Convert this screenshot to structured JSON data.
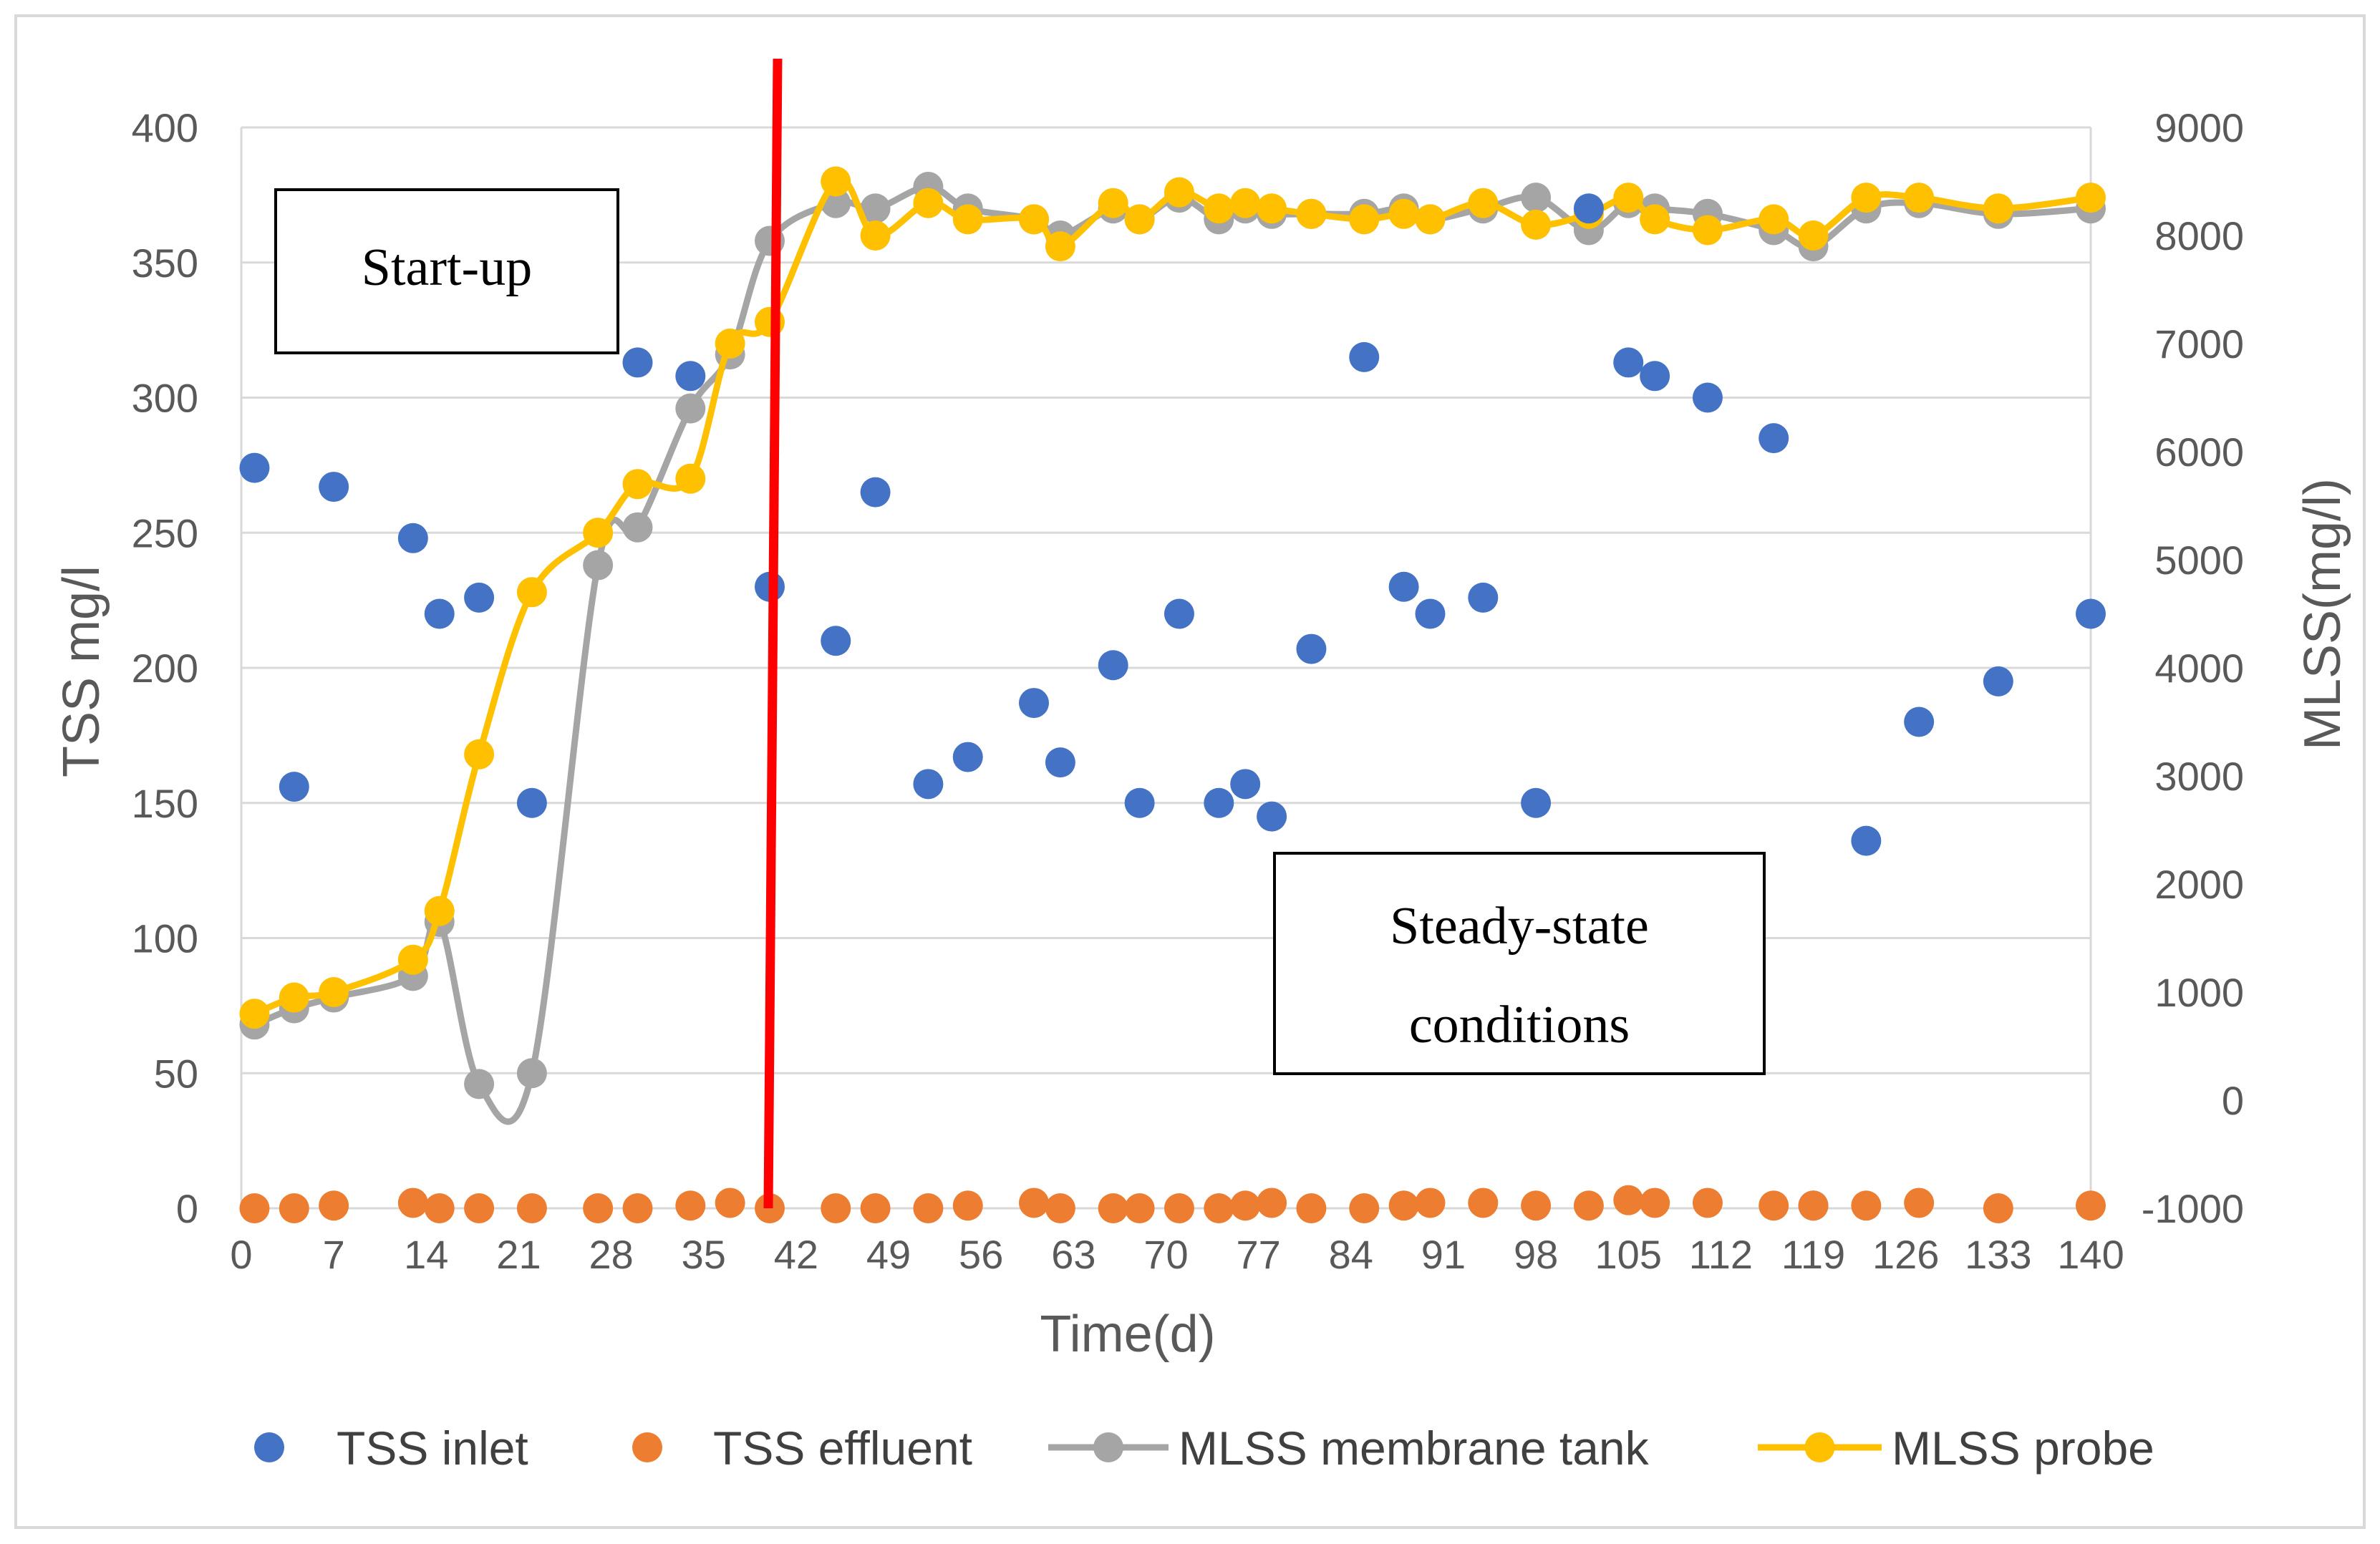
{
  "chart_data": {
    "type": "scatter+line",
    "xlabel": "Time(d)",
    "ylabel_left": "TSS mg/l",
    "ylabel_right": "MLSS(mg/l)",
    "xlim": [
      0,
      140
    ],
    "ylim_left": [
      0,
      400
    ],
    "ylim_right": [
      -1000,
      9000
    ],
    "x_ticks": [
      0,
      7,
      14,
      21,
      28,
      35,
      42,
      49,
      56,
      63,
      70,
      77,
      84,
      91,
      98,
      105,
      112,
      119,
      126,
      133,
      140
    ],
    "y_ticks_left": [
      0,
      50,
      100,
      150,
      200,
      250,
      300,
      350,
      400
    ],
    "y_ticks_right": [
      -1000,
      0,
      1000,
      2000,
      3000,
      4000,
      5000,
      6000,
      7000,
      8000,
      9000
    ],
    "grid": true,
    "legend_position": "bottom",
    "marker_line_day": 40,
    "annotations": [
      {
        "id": "start-up",
        "lines": [
          "Start-up"
        ]
      },
      {
        "id": "steady-state",
        "lines": [
          "Steady-state",
          "conditions"
        ]
      }
    ],
    "series": [
      {
        "name": "TSS inlet",
        "axis": "left",
        "style": "markers",
        "color": "#4472C4",
        "points": [
          [
            1,
            274
          ],
          [
            4,
            156
          ],
          [
            7,
            267
          ],
          [
            13,
            248
          ],
          [
            15,
            220
          ],
          [
            18,
            226
          ],
          [
            22,
            150
          ],
          [
            30,
            313
          ],
          [
            34,
            308
          ],
          [
            40,
            230
          ],
          [
            45,
            210
          ],
          [
            48,
            265
          ],
          [
            52,
            157
          ],
          [
            55,
            167
          ],
          [
            60,
            187
          ],
          [
            62,
            165
          ],
          [
            66,
            201
          ],
          [
            68,
            150
          ],
          [
            71,
            220
          ],
          [
            74,
            150
          ],
          [
            76,
            157
          ],
          [
            78,
            145
          ],
          [
            81,
            207
          ],
          [
            85,
            315
          ],
          [
            88,
            230
          ],
          [
            90,
            220
          ],
          [
            94,
            226
          ],
          [
            98,
            150
          ],
          [
            102,
            370
          ],
          [
            105,
            313
          ],
          [
            107,
            308
          ],
          [
            111,
            300
          ],
          [
            116,
            285
          ],
          [
            119,
            1
          ],
          [
            123,
            136
          ],
          [
            127,
            180
          ],
          [
            133,
            195
          ],
          [
            140,
            220
          ]
        ]
      },
      {
        "name": "TSS effluent",
        "axis": "left",
        "style": "markers",
        "color": "#ED7D31",
        "points": [
          [
            1,
            0
          ],
          [
            4,
            0
          ],
          [
            7,
            1
          ],
          [
            13,
            2
          ],
          [
            15,
            0
          ],
          [
            18,
            0
          ],
          [
            22,
            0
          ],
          [
            27,
            0
          ],
          [
            30,
            0
          ],
          [
            34,
            1
          ],
          [
            37,
            2
          ],
          [
            40,
            0
          ],
          [
            45,
            0
          ],
          [
            48,
            0
          ],
          [
            52,
            0
          ],
          [
            55,
            1
          ],
          [
            60,
            2
          ],
          [
            62,
            0
          ],
          [
            66,
            0
          ],
          [
            68,
            0
          ],
          [
            71,
            0
          ],
          [
            74,
            0
          ],
          [
            76,
            1
          ],
          [
            78,
            2
          ],
          [
            81,
            0
          ],
          [
            85,
            0
          ],
          [
            88,
            1
          ],
          [
            90,
            2
          ],
          [
            94,
            2
          ],
          [
            98,
            1
          ],
          [
            102,
            1
          ],
          [
            105,
            3
          ],
          [
            107,
            2
          ],
          [
            111,
            2
          ],
          [
            116,
            1
          ],
          [
            119,
            1
          ],
          [
            123,
            1
          ],
          [
            127,
            2
          ],
          [
            133,
            0
          ],
          [
            140,
            1
          ]
        ]
      },
      {
        "name": "MLSS membrane tank",
        "axis": "right",
        "style": "line+markers",
        "color": "#A5A5A5",
        "points": [
          [
            1,
            700
          ],
          [
            4,
            850
          ],
          [
            7,
            950
          ],
          [
            13,
            1150
          ],
          [
            15,
            1650
          ],
          [
            18,
            150
          ],
          [
            22,
            250
          ],
          [
            27,
            4950
          ],
          [
            30,
            5300
          ],
          [
            34,
            6400
          ],
          [
            37,
            6900
          ],
          [
            40,
            7950
          ],
          [
            45,
            8300
          ],
          [
            48,
            8250
          ],
          [
            52,
            8450
          ],
          [
            55,
            8250
          ],
          [
            60,
            8150
          ],
          [
            62,
            8000
          ],
          [
            66,
            8250
          ],
          [
            68,
            8150
          ],
          [
            71,
            8350
          ],
          [
            74,
            8150
          ],
          [
            76,
            8250
          ],
          [
            78,
            8200
          ],
          [
            81,
            8200
          ],
          [
            85,
            8200
          ],
          [
            88,
            8250
          ],
          [
            90,
            8150
          ],
          [
            94,
            8250
          ],
          [
            98,
            8350
          ],
          [
            102,
            8050
          ],
          [
            105,
            8300
          ],
          [
            107,
            8250
          ],
          [
            111,
            8200
          ],
          [
            116,
            8050
          ],
          [
            119,
            7900
          ],
          [
            123,
            8250
          ],
          [
            127,
            8300
          ],
          [
            133,
            8200
          ],
          [
            140,
            8250
          ]
        ]
      },
      {
        "name": "MLSS probe",
        "axis": "right",
        "style": "line+markers",
        "color": "#FFC000",
        "points": [
          [
            1,
            800
          ],
          [
            4,
            950
          ],
          [
            7,
            1000
          ],
          [
            13,
            1300
          ],
          [
            15,
            1750
          ],
          [
            18,
            3200
          ],
          [
            22,
            4700
          ],
          [
            27,
            5250
          ],
          [
            30,
            5700
          ],
          [
            34,
            5750
          ],
          [
            37,
            7000
          ],
          [
            40,
            7200
          ],
          [
            45,
            8500
          ],
          [
            48,
            8000
          ],
          [
            52,
            8300
          ],
          [
            55,
            8150
          ],
          [
            60,
            8150
          ],
          [
            62,
            7900
          ],
          [
            66,
            8300
          ],
          [
            68,
            8150
          ],
          [
            71,
            8400
          ],
          [
            74,
            8250
          ],
          [
            76,
            8300
          ],
          [
            78,
            8250
          ],
          [
            81,
            8200
          ],
          [
            85,
            8150
          ],
          [
            88,
            8200
          ],
          [
            90,
            8150
          ],
          [
            94,
            8300
          ],
          [
            98,
            8100
          ],
          [
            102,
            8200
          ],
          [
            105,
            8350
          ],
          [
            107,
            8150
          ],
          [
            111,
            8050
          ],
          [
            116,
            8150
          ],
          [
            119,
            8000
          ],
          [
            123,
            8350
          ],
          [
            127,
            8350
          ],
          [
            133,
            8250
          ],
          [
            140,
            8350
          ]
        ]
      }
    ]
  }
}
